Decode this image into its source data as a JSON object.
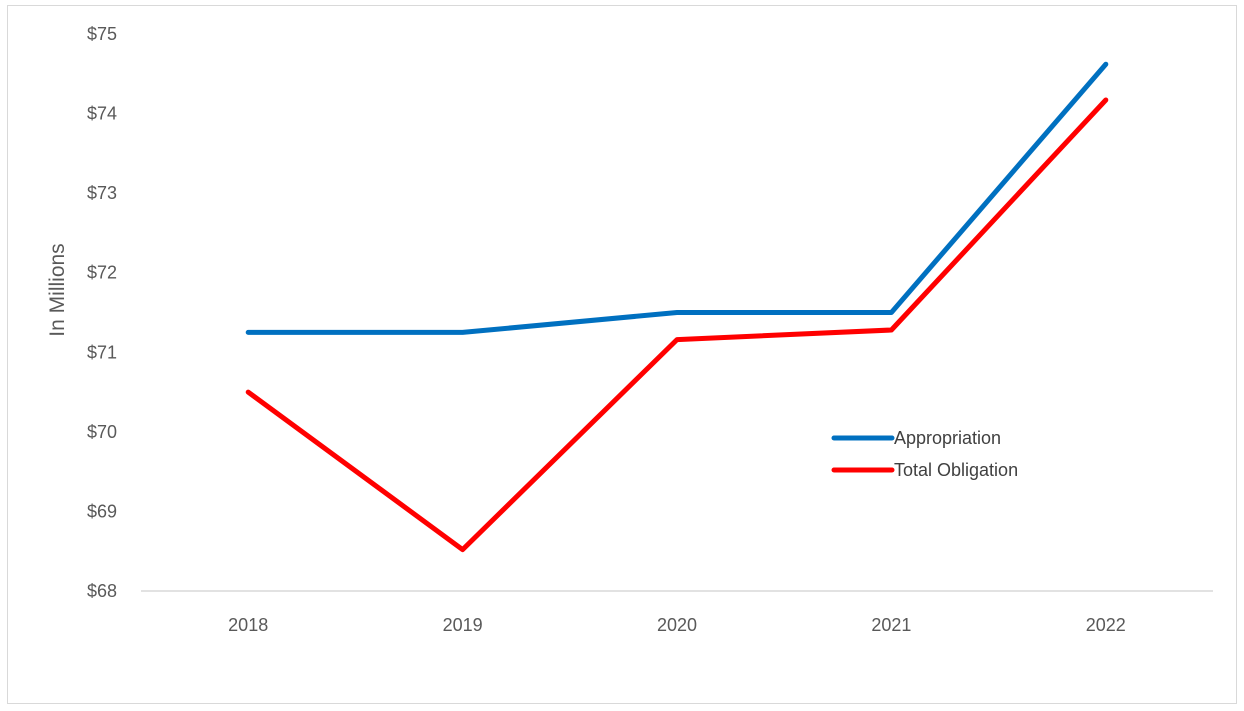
{
  "chart_data": {
    "type": "line",
    "categories": [
      "2018",
      "2019",
      "2020",
      "2021",
      "2022"
    ],
    "series": [
      {
        "name": "Appropriation",
        "color": "#0070C0",
        "values": [
          71.25,
          71.25,
          71.5,
          71.5,
          74.62
        ]
      },
      {
        "name": "Total Obligation",
        "color": "#FF0000",
        "values": [
          70.5,
          68.52,
          71.16,
          71.28,
          74.17
        ]
      }
    ],
    "title": "",
    "xlabel": "",
    "ylabel": "In Millions",
    "ylim": [
      68,
      75
    ],
    "yticks": [
      "$68",
      "$69",
      "$70",
      "$71",
      "$72",
      "$73",
      "$74",
      "$75"
    ],
    "grid": false,
    "legend_position": "right-middle"
  }
}
